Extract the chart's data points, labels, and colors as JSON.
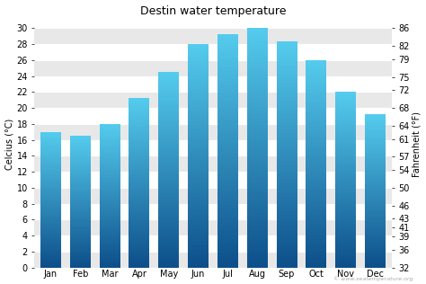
{
  "title": "Destin water temperature",
  "months": [
    "Jan",
    "Feb",
    "Mar",
    "Apr",
    "May",
    "Jun",
    "Jul",
    "Aug",
    "Sep",
    "Oct",
    "Nov",
    "Dec"
  ],
  "celsius_values": [
    17.0,
    16.5,
    18.0,
    21.2,
    24.5,
    28.0,
    29.3,
    30.0,
    28.3,
    26.0,
    22.0,
    19.2
  ],
  "ylabel_left": "Celcius (°C)",
  "ylabel_right": "Fahrenheit (°F)",
  "ylim_celsius": [
    0,
    31
  ],
  "yticks_celsius": [
    0,
    2,
    4,
    6,
    8,
    10,
    12,
    14,
    16,
    18,
    20,
    22,
    24,
    26,
    28,
    30
  ],
  "fahr_labels_shown": [
    32,
    36,
    39,
    41,
    43,
    46,
    50,
    54,
    57,
    61,
    64,
    68,
    72,
    75,
    79,
    82,
    86
  ],
  "watermark": "© www.seatemperature.org",
  "bg_color": "#ffffff",
  "plot_bg_color": "#ffffff",
  "bar_color_top": "#55ccee",
  "bar_color_bottom": "#0d4f8a",
  "band_colors": [
    "#e8e8e8",
    "#ffffff"
  ],
  "title_fontsize": 9,
  "axis_fontsize": 7,
  "tick_fontsize": 7
}
